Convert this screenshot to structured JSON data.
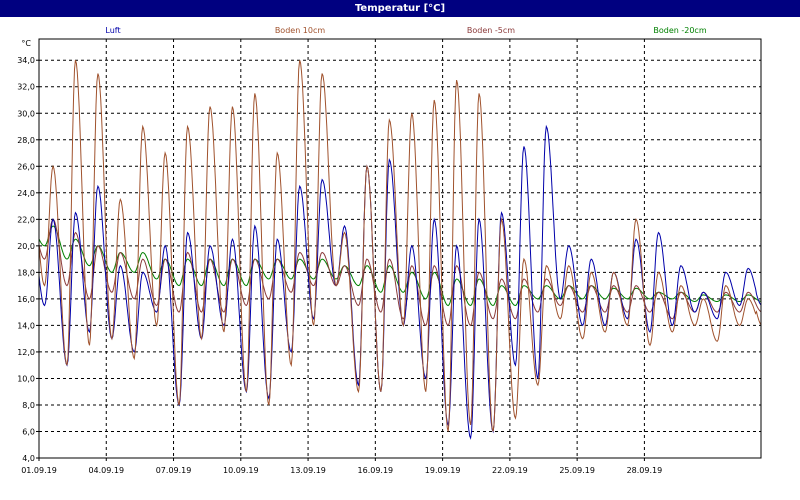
{
  "window": {
    "title": "Temperatur [°C]"
  },
  "colors": {
    "luft": "#0000aa",
    "boden10": "#a0522d",
    "boden5": "#8b3a3a",
    "boden20": "#008000",
    "grid": "#000000",
    "frame": "#000000"
  },
  "chart_data": {
    "type": "line",
    "ylabel": "°C",
    "ylim": [
      4.0,
      35.6
    ],
    "y_ticks": [
      "4,0",
      "6,0",
      "8,0",
      "10,0",
      "12,0",
      "14,0",
      "16,0",
      "18,0",
      "20,0",
      "22,0",
      "24,0",
      "26,0",
      "28,0",
      "30,0",
      "32,0",
      "34,0"
    ],
    "x_ticks": [
      "01.09.19",
      "04.09.19",
      "07.09.19",
      "10.09.19",
      "13.09.19",
      "16.09.19",
      "19.09.19",
      "22.09.19",
      "25.09.19",
      "28.09.19"
    ],
    "x_tick_days": [
      0,
      3,
      6,
      9,
      12,
      15,
      18,
      21,
      24,
      27
    ],
    "xlim_days": [
      0,
      32.2
    ],
    "grid": true,
    "legend": "top",
    "series": [
      {
        "name": "Luft",
        "color_key": "luft",
        "daily_min": [
          15.5,
          11.0,
          13.5,
          13.0,
          12.0,
          15.0,
          8.0,
          13.0,
          14.0,
          9.0,
          8.5,
          12.0,
          14.5,
          17.0,
          9.5,
          9.0,
          14.0,
          10.0,
          6.5,
          5.5,
          6.0,
          11.0,
          10.0,
          16.0,
          14.0,
          14.0,
          14.5,
          13.5,
          14.0,
          15.0,
          14.5,
          15.5
        ],
        "daily_max": [
          22.0,
          22.5,
          24.5,
          18.5,
          18.0,
          20.0,
          21.0,
          20.0,
          20.5,
          21.5,
          20.5,
          24.5,
          25.0,
          21.5,
          26.0,
          26.5,
          20.0,
          22.0,
          20.0,
          22.0,
          22.5,
          27.5,
          29.0,
          20.0,
          19.0,
          18.0,
          20.5,
          21.0,
          18.5,
          16.5,
          18.0,
          18.3
        ]
      },
      {
        "name": "Boden 10cm",
        "color_key": "boden10",
        "daily_min": [
          17.0,
          11.0,
          12.5,
          13.0,
          11.5,
          14.0,
          8.0,
          13.0,
          13.5,
          9.0,
          8.0,
          11.0,
          14.0,
          17.0,
          9.0,
          9.0,
          14.0,
          9.0,
          6.0,
          6.5,
          6.0,
          7.0,
          9.5,
          14.5,
          13.0,
          13.5,
          14.0,
          12.5,
          13.5,
          14.0,
          12.8,
          14.0
        ],
        "daily_max": [
          26.0,
          34.0,
          33.0,
          23.5,
          29.0,
          27.0,
          29.0,
          30.5,
          30.5,
          31.5,
          27.0,
          34.0,
          33.0,
          21.0,
          26.0,
          29.5,
          30.0,
          31.0,
          32.5,
          31.5,
          22.0,
          19.0,
          18.5,
          18.5,
          18.0,
          18.0,
          22.0,
          18.0,
          17.0,
          16.0,
          17.0,
          16.0
        ]
      },
      {
        "name": "Boden -5cm",
        "color_key": "boden5",
        "daily_min": [
          19.0,
          17.0,
          16.0,
          16.5,
          16.0,
          15.5,
          15.0,
          15.0,
          15.0,
          15.5,
          16.0,
          16.5,
          17.0,
          17.0,
          15.5,
          15.0,
          14.5,
          14.0,
          14.0,
          14.0,
          14.5,
          14.5,
          15.0,
          15.5,
          15.0,
          15.0,
          15.0,
          15.0,
          14.5,
          15.0,
          15.0,
          15.0
        ],
        "daily_max": [
          22.0,
          21.0,
          20.0,
          19.5,
          19.0,
          19.0,
          19.5,
          19.0,
          19.0,
          19.0,
          19.0,
          19.5,
          19.5,
          18.5,
          19.0,
          19.0,
          18.5,
          18.5,
          18.5,
          18.0,
          17.5,
          17.5,
          17.5,
          17.0,
          17.0,
          17.0,
          17.0,
          16.5,
          16.5,
          16.5,
          16.5,
          16.5
        ]
      },
      {
        "name": "Boden -20cm",
        "color_key": "boden20",
        "daily_min": [
          20.0,
          19.0,
          18.5,
          18.0,
          18.0,
          17.5,
          17.0,
          17.0,
          17.0,
          17.0,
          17.5,
          17.5,
          17.5,
          17.5,
          17.0,
          16.5,
          16.5,
          16.0,
          15.5,
          15.5,
          15.5,
          15.5,
          16.0,
          16.0,
          16.0,
          16.0,
          16.0,
          16.0,
          16.0,
          15.8,
          15.8,
          15.8
        ],
        "daily_max": [
          21.5,
          20.5,
          20.0,
          19.5,
          19.5,
          19.0,
          19.0,
          19.0,
          19.0,
          19.0,
          19.0,
          19.0,
          19.0,
          18.5,
          18.5,
          18.5,
          18.0,
          18.0,
          17.5,
          17.5,
          17.0,
          17.0,
          17.0,
          17.0,
          17.0,
          16.8,
          16.8,
          16.5,
          16.5,
          16.3,
          16.3,
          16.3
        ]
      }
    ]
  }
}
